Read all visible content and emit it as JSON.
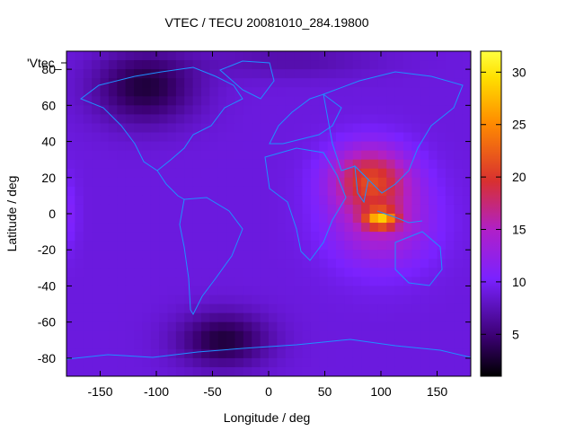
{
  "chart_data": {
    "type": "heatmap",
    "title": "VTEC / TECU 20081010_284.19800",
    "xlabel": "Longitude / deg",
    "ylabel": "Latitude / deg",
    "series_label": "'Vtec_",
    "xlim": [
      -180,
      180
    ],
    "ylim": [
      -90,
      90
    ],
    "x_ticks": [
      -150,
      -100,
      -50,
      0,
      50,
      100,
      150
    ],
    "y_ticks": [
      -80,
      -60,
      -40,
      -20,
      0,
      20,
      40,
      60,
      80
    ],
    "colorbar": {
      "range": [
        1,
        32
      ],
      "ticks": [
        5,
        10,
        15,
        20,
        25,
        30
      ],
      "colormap": [
        "#000000",
        "#4b0082",
        "#7b2bff",
        "#b020c8",
        "#d83030",
        "#ff8c00",
        "#ffe000",
        "#ffff40"
      ]
    },
    "features": [
      {
        "name": "background",
        "vtec": 9
      },
      {
        "name": "equatorial-anomaly-asia",
        "center_lon": 100,
        "center_lat": 0,
        "peak_vtec": 32
      },
      {
        "name": "northern-enhancement-asia",
        "center_lon": 90,
        "center_lat": 20,
        "vtec": 20
      },
      {
        "name": "low-arctic-canada",
        "center_lon": -110,
        "center_lat": 70,
        "vtec": 3
      },
      {
        "name": "low-southern-ocean",
        "center_lon": -40,
        "center_lat": -70,
        "vtec": 3
      }
    ],
    "coastline_color": "#1e90ff"
  }
}
